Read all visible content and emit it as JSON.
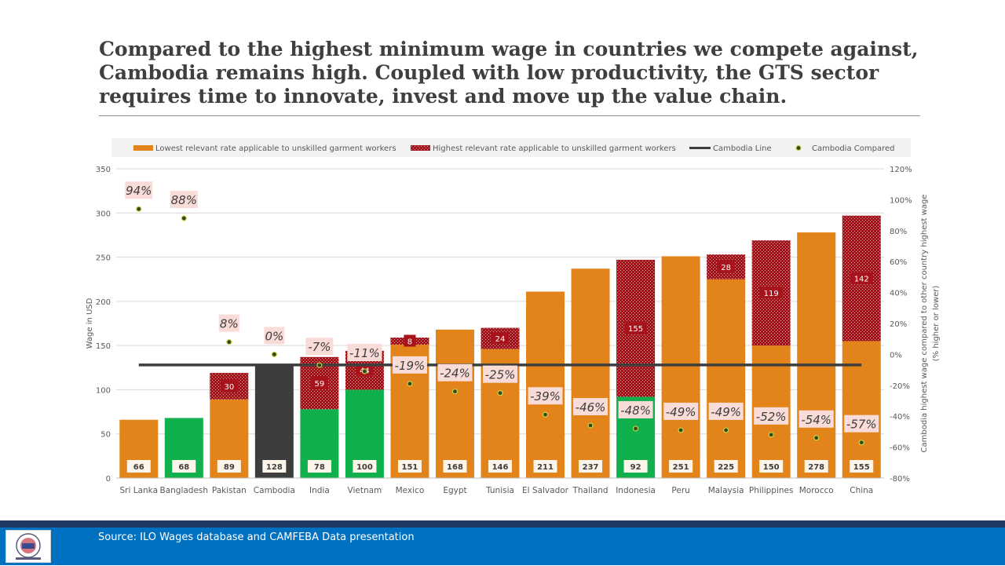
{
  "title": "Compared to the highest minimum wage in countries we compete against, Cambodia remains high.  Coupled with low productivity, the GTS sector requires time to innovate, invest and move up the value chain.",
  "footer": {
    "source": "Source:  ILO Wages database and CAMFEBA Data presentation"
  },
  "colors": {
    "orange": "#e3841b",
    "green": "#10b04d",
    "dark": "#3d3d3d",
    "red": "#a8131b",
    "highlight": "#f9dcd8"
  },
  "chart_data": {
    "type": "bar",
    "stacked": true,
    "categories": [
      "Sri Lanka",
      "Bangladesh",
      "Pakistan",
      "Cambodia",
      "India",
      "Vietnam",
      "Mexico",
      "Egypt",
      "Tunisia",
      "El Salvador",
      "Thailand",
      "Indonesia",
      "Peru",
      "Malaysia",
      "Philippines",
      "Morocco",
      "China"
    ],
    "bar_colors": [
      "orange",
      "green",
      "orange",
      "dark",
      "green",
      "green",
      "orange",
      "orange",
      "orange",
      "orange",
      "orange",
      "green",
      "orange",
      "orange",
      "orange",
      "orange",
      "orange"
    ],
    "series": [
      {
        "name": "Lowest relevant rate applicable to unskilled garment workers",
        "values": [
          66,
          68,
          89,
          128,
          78,
          100,
          151,
          168,
          146,
          211,
          237,
          92,
          251,
          225,
          150,
          278,
          155
        ]
      },
      {
        "name": "Highest relevant rate applicable to unskilled garment workers",
        "values": [
          null,
          null,
          30,
          null,
          59,
          44,
          8,
          null,
          24,
          null,
          null,
          155,
          null,
          28,
          119,
          null,
          142
        ]
      }
    ],
    "cambodia_line": {
      "name": "Cambodia Line",
      "value": 128
    },
    "cambodia_compared": {
      "name": "Cambodia Compared",
      "values": [
        94,
        88,
        8,
        0,
        -7,
        -11,
        -19,
        -24,
        -25,
        -39,
        -46,
        -48,
        -49,
        -49,
        -52,
        -54,
        -57
      ],
      "labels": [
        "94%",
        "88%",
        "8%",
        "0%",
        "-7%",
        "-11%",
        "-19%",
        "-24%",
        "-25%",
        "-39%",
        "-46%",
        "-48%",
        "-49%",
        "-49%",
        "-52%",
        "-54%",
        "-57%"
      ]
    },
    "ylabel": "Wage in USD",
    "ylim": [
      0,
      350
    ],
    "yticks": [
      0,
      50,
      100,
      150,
      200,
      250,
      300,
      350
    ],
    "y2label_line1": "Cambodia highest wage compared to other country highest wage",
    "y2label_line2": "(% higher or lower)",
    "y2lim": [
      -80,
      120
    ],
    "y2ticks": [
      -80,
      -60,
      -40,
      -20,
      0,
      20,
      40,
      60,
      80,
      100,
      120
    ],
    "grid": true,
    "legend_position": "top"
  }
}
